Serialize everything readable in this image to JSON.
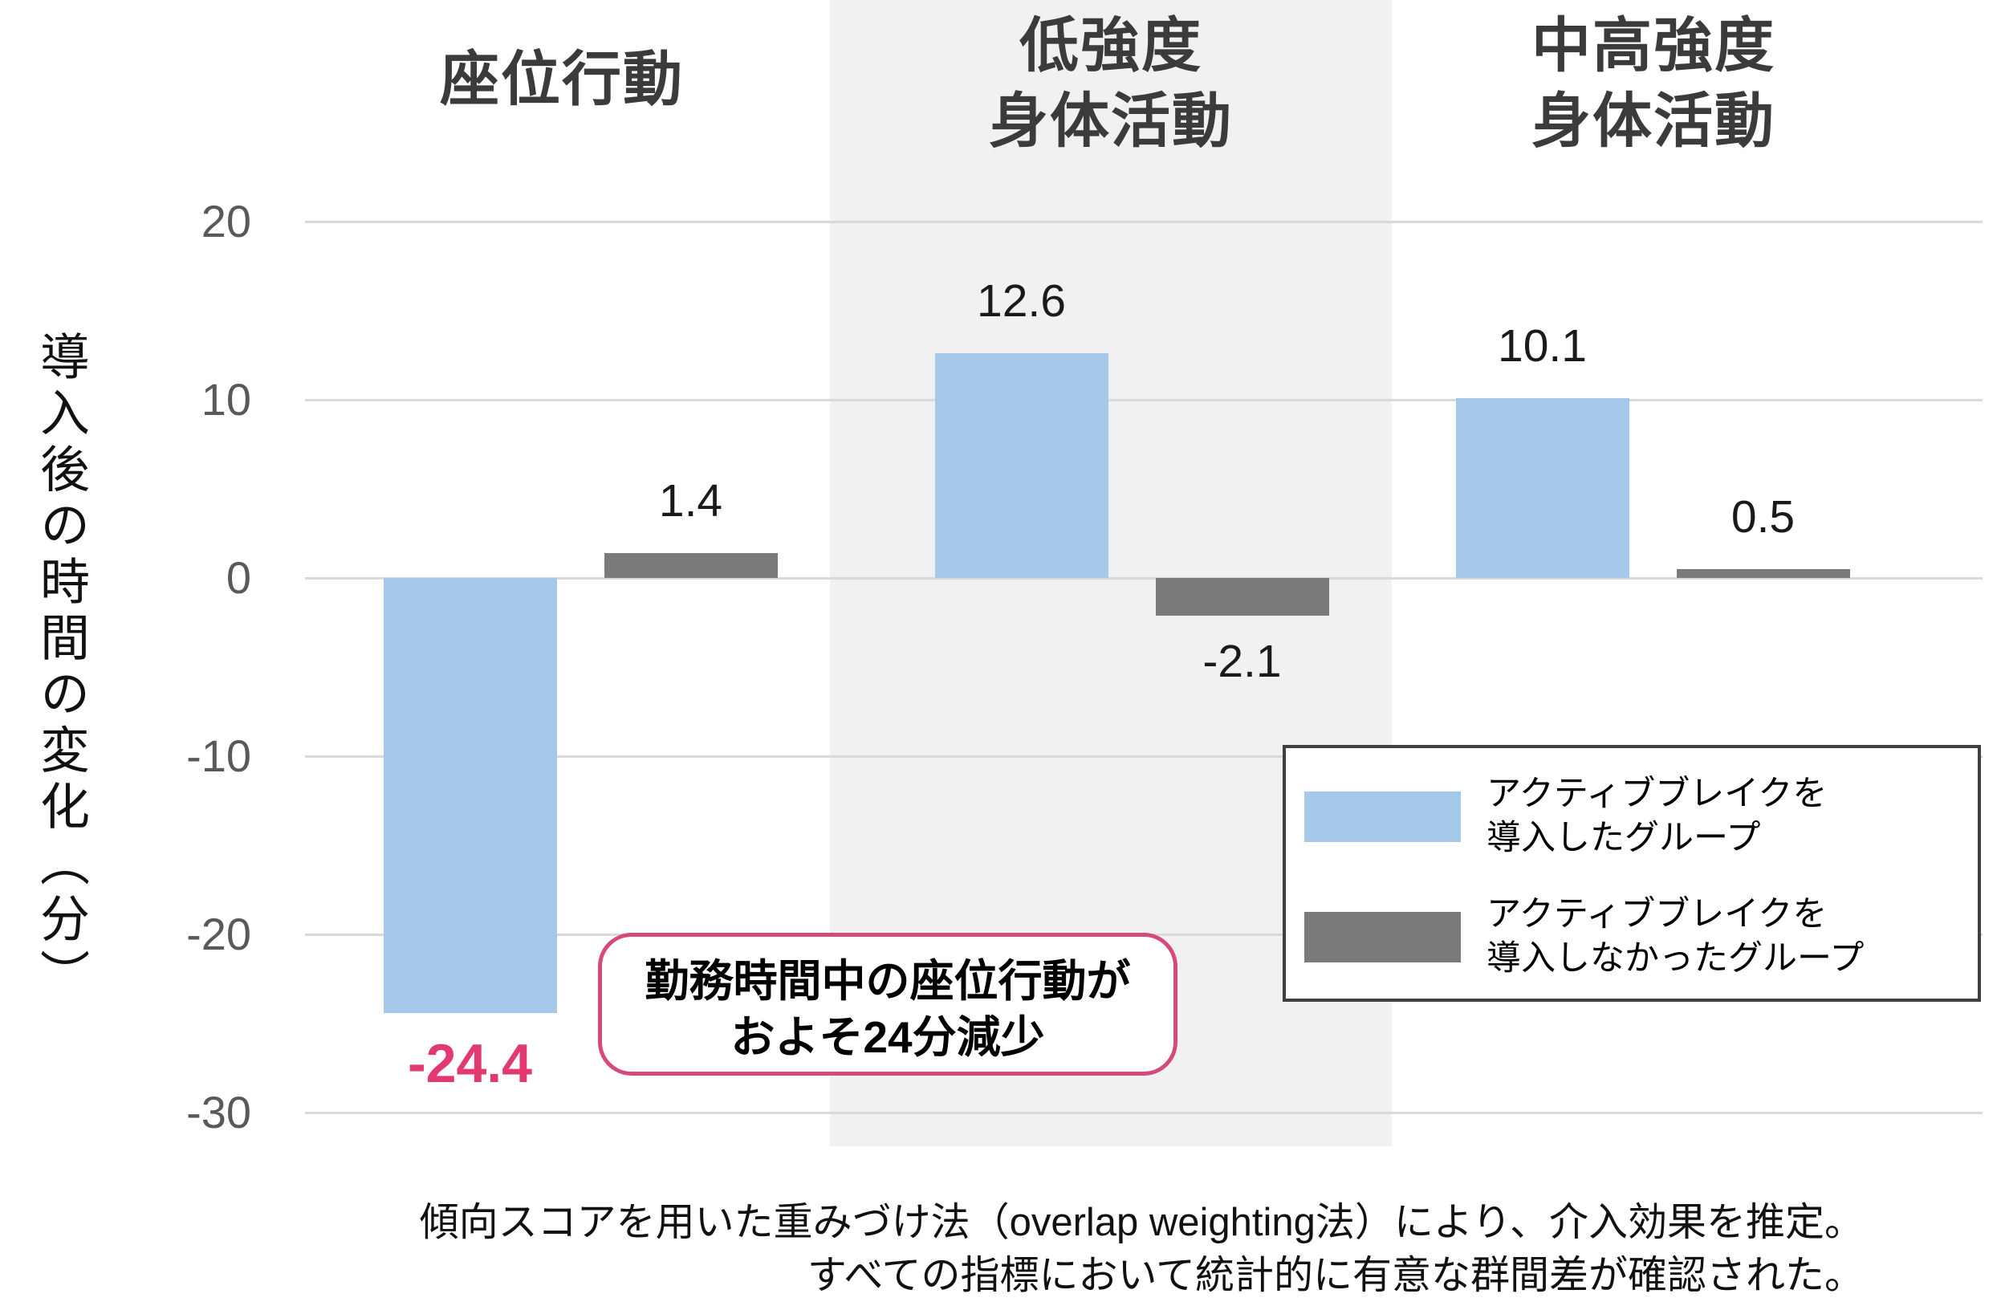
{
  "chart_data": {
    "type": "bar",
    "title": "",
    "categories": [
      {
        "label": "座位行動",
        "lines": [
          "座位行動"
        ]
      },
      {
        "label": "低強度身体活動",
        "lines": [
          "低強度",
          "身体活動"
        ]
      },
      {
        "label": "中高強度身体活動",
        "lines": [
          "中高強度",
          "身体活動"
        ]
      }
    ],
    "series": [
      {
        "name": "アクティブブレイクを導入したグループ",
        "color": "#A6C9E9",
        "values": [
          -24.4,
          12.6,
          10.1
        ],
        "labels": [
          "-24.4",
          "12.6",
          "10.1"
        ]
      },
      {
        "name": "アクティブブレイクを導入しなかったグループ",
        "color": "#7A7A7A",
        "values": [
          1.4,
          -2.1,
          0.5
        ],
        "labels": [
          "1.4",
          "-2.1",
          "0.5"
        ]
      }
    ],
    "ylabel": "導入後の時間の変化（分）",
    "ylim": [
      -30,
      20
    ],
    "yticks": [
      20,
      10,
      0,
      -10,
      -20,
      -30
    ],
    "grid": true,
    "highlighted_band_category": "低強度身体活動",
    "highlighted_value": "-24.4",
    "legend_position": "bottom-right"
  },
  "annotation": {
    "line1": "勤務時間中の座位行動が",
    "line2": "およそ24分減少"
  },
  "legend": {
    "items": [
      {
        "color": "#A6C9E9",
        "lines": [
          "アクティブブレイクを",
          "導入したグループ"
        ]
      },
      {
        "color": "#7A7A7A",
        "lines": [
          "アクティブブレイクを",
          "導入しなかったグループ"
        ]
      }
    ]
  },
  "footnote": {
    "line1": "傾向スコアを用いた重みづけ法（overlap weighting法）により、介入効果を推定。",
    "line2": "すべての指標において統計的に有意な群間差が確認された。"
  },
  "colors": {
    "bar_blue": "#A6C9E9",
    "bar_gray": "#7A7A7A",
    "band_gray": "#F1F1F1",
    "gridline": "#D9D9D9",
    "tick_text": "#595959",
    "header_text": "#3B3B3B",
    "accent_pink": "#E23A6E",
    "callout_border": "#D6497F",
    "legend_border": "#3F3F3F"
  }
}
